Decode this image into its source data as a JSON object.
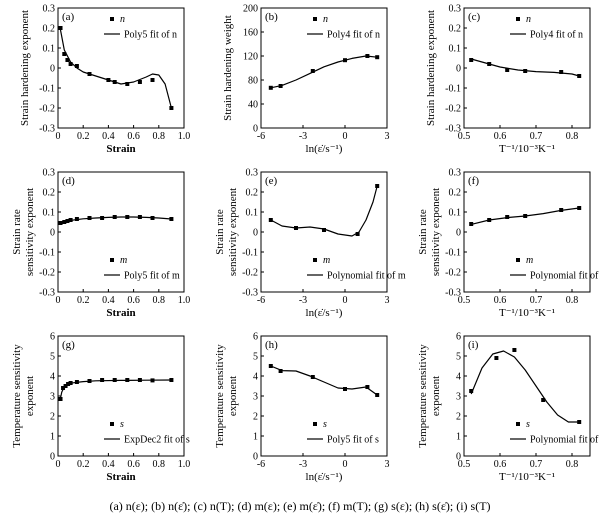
{
  "caption": "(a) n(ε); (b) n(ε̇); (c) n(T); (d) m(ε); (e) m(ε̇); (f) m(T); (g) s(ε); (h) s(ε̇); (i) s(T)",
  "chart_data": [
    {
      "id": "a",
      "type": "scatter",
      "panel_label": "(a)",
      "xlabel": "Strain",
      "ylabel": "Strain hardening exponent",
      "xlim": [
        0,
        1.0
      ],
      "ylim": [
        -0.3,
        0.3
      ],
      "xticks": [
        0,
        0.2,
        0.4,
        0.6,
        0.8,
        1.0
      ],
      "xtick_labels": [
        "0",
        "0.2",
        "0.4",
        "0.6",
        "0.8",
        "1.0"
      ],
      "yticks": [
        -0.3,
        -0.2,
        -0.1,
        0,
        0.1,
        0.2,
        0.3
      ],
      "ytick_labels": [
        "-0.3",
        "-0.2",
        "-0.1",
        "0",
        "0.1",
        "0.2",
        "0.3"
      ],
      "legend": [
        "n",
        "Poly5 fit of n"
      ],
      "legend_position": "top-right",
      "points": {
        "x": [
          0.02,
          0.05,
          0.075,
          0.1,
          0.15,
          0.25,
          0.4,
          0.45,
          0.55,
          0.65,
          0.75,
          0.9
        ],
        "y": [
          0.2,
          0.07,
          0.04,
          0.02,
          0.01,
          -0.03,
          -0.06,
          -0.07,
          -0.08,
          -0.07,
          -0.06,
          -0.2
        ]
      },
      "fit": {
        "x": [
          0.02,
          0.05,
          0.1,
          0.15,
          0.2,
          0.3,
          0.4,
          0.5,
          0.6,
          0.7,
          0.75,
          0.8,
          0.85,
          0.9
        ],
        "y": [
          0.19,
          0.09,
          0.03,
          0.0,
          -0.02,
          -0.04,
          -0.06,
          -0.08,
          -0.07,
          -0.045,
          -0.03,
          -0.035,
          -0.08,
          -0.2
        ]
      }
    },
    {
      "id": "b",
      "type": "scatter",
      "panel_label": "(b)",
      "xlabel": "ln(ε̇/s⁻¹)",
      "ylabel": "Strain hardening weight",
      "xlim": [
        -6,
        3
      ],
      "ylim": [
        0,
        200
      ],
      "xticks": [
        -6,
        -3,
        0,
        3
      ],
      "xtick_labels": [
        "-6",
        "-3",
        "0",
        "3"
      ],
      "yticks": [
        0,
        40,
        80,
        120,
        160,
        200
      ],
      "ytick_labels": [
        "0",
        "40",
        "80",
        "120",
        "160",
        "200"
      ],
      "legend": [
        "n",
        "Poly4 fit of n"
      ],
      "legend_position": "top-right",
      "points": {
        "x": [
          -5.3,
          -4.6,
          -2.3,
          0,
          1.6,
          2.3
        ],
        "y": [
          67,
          70,
          95,
          113,
          120,
          118
        ]
      },
      "fit": {
        "x": [
          -5.3,
          -4.5,
          -3.5,
          -2.5,
          -1.5,
          -0.5,
          0.5,
          1.5,
          2.3
        ],
        "y": [
          67,
          71,
          80,
          91,
          102,
          110,
          116,
          120,
          118
        ]
      }
    },
    {
      "id": "c",
      "type": "scatter",
      "panel_label": "(c)",
      "xlabel": "T⁻¹/10⁻³K⁻¹",
      "ylabel": "Strain hardening exponent",
      "xlim": [
        0.5,
        0.85
      ],
      "ylim": [
        -0.3,
        0.3
      ],
      "xticks": [
        0.5,
        0.6,
        0.7,
        0.8
      ],
      "xtick_labels": [
        "0.5",
        "0.6",
        "0.7",
        "0.8"
      ],
      "yticks": [
        -0.3,
        -0.2,
        -0.1,
        0,
        0.1,
        0.2,
        0.3
      ],
      "ytick_labels": [
        "-0.3",
        "-0.2",
        "-0.1",
        "0",
        "0.1",
        "0.2",
        "0.3"
      ],
      "legend": [
        "n",
        "Poly4 fit of n"
      ],
      "legend_position": "top-right",
      "points": {
        "x": [
          0.52,
          0.57,
          0.62,
          0.67,
          0.77,
          0.82
        ],
        "y": [
          0.04,
          0.02,
          -0.01,
          -0.015,
          -0.02,
          -0.04
        ]
      },
      "fit": {
        "x": [
          0.52,
          0.55,
          0.6,
          0.65,
          0.7,
          0.75,
          0.8,
          0.82
        ],
        "y": [
          0.045,
          0.03,
          0.005,
          -0.01,
          -0.018,
          -0.022,
          -0.03,
          -0.04
        ]
      }
    },
    {
      "id": "d",
      "type": "scatter",
      "panel_label": "(d)",
      "xlabel": "Strain",
      "ylabel": "Strain rate sensitivity exponent",
      "xlim": [
        0,
        1.0
      ],
      "ylim": [
        -0.3,
        0.3
      ],
      "xticks": [
        0,
        0.2,
        0.4,
        0.6,
        0.8,
        1.0
      ],
      "xtick_labels": [
        "0",
        "0.2",
        "0.4",
        "0.6",
        "0.8",
        "1.0"
      ],
      "yticks": [
        -0.3,
        -0.2,
        -0.1,
        0,
        0.1,
        0.2,
        0.3
      ],
      "ytick_labels": [
        "-0.3",
        "-0.2",
        "-0.1",
        "0",
        "0.1",
        "0.2",
        "0.3"
      ],
      "legend": [
        "m",
        "Poly5 fit of m"
      ],
      "legend_position": "bottom-right",
      "points": {
        "x": [
          0.02,
          0.05,
          0.075,
          0.1,
          0.15,
          0.25,
          0.35,
          0.45,
          0.55,
          0.65,
          0.75,
          0.9
        ],
        "y": [
          0.045,
          0.05,
          0.055,
          0.06,
          0.065,
          0.07,
          0.07,
          0.075,
          0.075,
          0.075,
          0.07,
          0.065
        ]
      },
      "fit": {
        "x": [
          0.02,
          0.1,
          0.2,
          0.3,
          0.4,
          0.5,
          0.6,
          0.7,
          0.8,
          0.9
        ],
        "y": [
          0.045,
          0.058,
          0.066,
          0.07,
          0.073,
          0.075,
          0.075,
          0.073,
          0.07,
          0.065
        ]
      }
    },
    {
      "id": "e",
      "type": "scatter",
      "panel_label": "(e)",
      "xlabel": "ln(ε̇/s⁻¹)",
      "ylabel": "Strain rate sensitivity exponent",
      "xlim": [
        -6,
        3
      ],
      "ylim": [
        -0.3,
        0.3
      ],
      "xticks": [
        -6,
        -3,
        0,
        3
      ],
      "xtick_labels": [
        "-6",
        "-3",
        "0",
        "3"
      ],
      "yticks": [
        -0.3,
        -0.2,
        -0.1,
        0,
        0.1,
        0.2,
        0.3
      ],
      "ytick_labels": [
        "-0.3",
        "-0.2",
        "-0.1",
        "0",
        "0.1",
        "0.2",
        "0.3"
      ],
      "legend": [
        "m",
        "Polynomial fit of m"
      ],
      "legend_position": "bottom-right",
      "points": {
        "x": [
          -5.3,
          -3.5,
          -1.5,
          0.9,
          2.3
        ],
        "y": [
          0.06,
          0.02,
          0.01,
          -0.01,
          0.23
        ]
      },
      "fit": {
        "x": [
          -5.3,
          -4.5,
          -3.5,
          -2.5,
          -1.5,
          -0.5,
          0.5,
          1.0,
          1.5,
          2.0,
          2.3
        ],
        "y": [
          0.06,
          0.03,
          0.02,
          0.025,
          0.015,
          -0.01,
          -0.02,
          0.0,
          0.06,
          0.15,
          0.23
        ]
      }
    },
    {
      "id": "f",
      "type": "scatter",
      "panel_label": "(f)",
      "xlabel": "T⁻¹/10⁻³K⁻¹",
      "ylabel": "Strain rate sensitivity exponent",
      "xlim": [
        0.5,
        0.85
      ],
      "ylim": [
        -0.3,
        0.3
      ],
      "xticks": [
        0.5,
        0.6,
        0.7,
        0.8
      ],
      "xtick_labels": [
        "0.5",
        "0.6",
        "0.7",
        "0.8"
      ],
      "yticks": [
        -0.3,
        -0.2,
        -0.1,
        0,
        0.1,
        0.2,
        0.3
      ],
      "ytick_labels": [
        "-0.3",
        "-0.2",
        "-0.1",
        "0",
        "0.1",
        "0.2",
        "0.3"
      ],
      "legend": [
        "m",
        "Polynomial fit of m"
      ],
      "legend_position": "bottom-right",
      "points": {
        "x": [
          0.52,
          0.57,
          0.62,
          0.67,
          0.77,
          0.82
        ],
        "y": [
          0.04,
          0.06,
          0.075,
          0.08,
          0.11,
          0.12
        ]
      },
      "fit": {
        "x": [
          0.52,
          0.57,
          0.62,
          0.67,
          0.72,
          0.77,
          0.82
        ],
        "y": [
          0.038,
          0.06,
          0.072,
          0.08,
          0.092,
          0.108,
          0.12
        ]
      }
    },
    {
      "id": "g",
      "type": "scatter",
      "panel_label": "(g)",
      "xlabel": "Strain",
      "ylabel": "Temperature sensitivity exponent",
      "xlim": [
        0,
        1.0
      ],
      "ylim": [
        0,
        6
      ],
      "xticks": [
        0,
        0.2,
        0.4,
        0.6,
        0.8,
        1.0
      ],
      "xtick_labels": [
        "0",
        "0.2",
        "0.4",
        "0.6",
        "0.8",
        "1.0"
      ],
      "yticks": [
        0,
        1,
        2,
        3,
        4,
        5,
        6
      ],
      "ytick_labels": [
        "0",
        "1",
        "2",
        "3",
        "4",
        "5",
        "6"
      ],
      "legend": [
        "s",
        "ExpDec2 fit of s"
      ],
      "legend_position": "bottom-right",
      "points": {
        "x": [
          0.02,
          0.04,
          0.06,
          0.08,
          0.1,
          0.15,
          0.25,
          0.35,
          0.45,
          0.55,
          0.65,
          0.75,
          0.9
        ],
        "y": [
          2.85,
          3.4,
          3.5,
          3.6,
          3.65,
          3.7,
          3.75,
          3.8,
          3.8,
          3.8,
          3.8,
          3.78,
          3.8
        ]
      },
      "fit": {
        "x": [
          0.02,
          0.03,
          0.05,
          0.08,
          0.12,
          0.2,
          0.3,
          0.5,
          0.7,
          0.9
        ],
        "y": [
          2.9,
          3.2,
          3.45,
          3.58,
          3.66,
          3.72,
          3.76,
          3.78,
          3.79,
          3.8
        ]
      }
    },
    {
      "id": "h",
      "type": "scatter",
      "panel_label": "(h)",
      "xlabel": "ln(ε̇/s⁻¹)",
      "ylabel": "Temperature sensitivity exponent",
      "xlim": [
        -6,
        3
      ],
      "ylim": [
        0,
        6
      ],
      "xticks": [
        -6,
        -3,
        0,
        3
      ],
      "xtick_labels": [
        "-6",
        "-3",
        "0",
        "3"
      ],
      "yticks": [
        0,
        1,
        2,
        3,
        4,
        5,
        6
      ],
      "ytick_labels": [
        "0",
        "1",
        "2",
        "3",
        "4",
        "5",
        "6"
      ],
      "legend": [
        "s",
        "Poly5 fit of s"
      ],
      "legend_position": "bottom-right",
      "points": {
        "x": [
          -5.3,
          -4.6,
          -2.3,
          0,
          1.6,
          2.3
        ],
        "y": [
          4.5,
          4.25,
          3.95,
          3.35,
          3.45,
          3.05
        ]
      },
      "fit": {
        "x": [
          -5.3,
          -4.5,
          -3.5,
          -2.5,
          -1.5,
          -0.5,
          0.5,
          1.5,
          2.3
        ],
        "y": [
          4.5,
          4.27,
          4.25,
          4.0,
          3.7,
          3.4,
          3.35,
          3.45,
          3.05
        ]
      }
    },
    {
      "id": "i",
      "type": "scatter",
      "panel_label": "(i)",
      "xlabel": "T⁻¹/10⁻³K⁻¹",
      "ylabel": "Temperature sensitivity exponent",
      "xlim": [
        0.5,
        0.85
      ],
      "ylim": [
        0,
        6
      ],
      "xticks": [
        0.5,
        0.6,
        0.7,
        0.8
      ],
      "xtick_labels": [
        "0.5",
        "0.6",
        "0.7",
        "0.8"
      ],
      "yticks": [
        0,
        1,
        2,
        3,
        4,
        5,
        6
      ],
      "ytick_labels": [
        "0",
        "1",
        "2",
        "3",
        "4",
        "5",
        "6"
      ],
      "legend": [
        "s",
        "Polynomial fit of s"
      ],
      "legend_position": "bottom-right",
      "points": {
        "x": [
          0.52,
          0.59,
          0.64,
          0.72,
          0.82
        ],
        "y": [
          3.25,
          4.9,
          5.3,
          2.8,
          1.7
        ]
      },
      "fit": {
        "x": [
          0.52,
          0.55,
          0.58,
          0.61,
          0.64,
          0.67,
          0.7,
          0.73,
          0.76,
          0.79,
          0.82
        ],
        "y": [
          3.1,
          4.4,
          5.1,
          5.25,
          4.95,
          4.3,
          3.5,
          2.7,
          2.05,
          1.7,
          1.7
        ]
      }
    }
  ]
}
